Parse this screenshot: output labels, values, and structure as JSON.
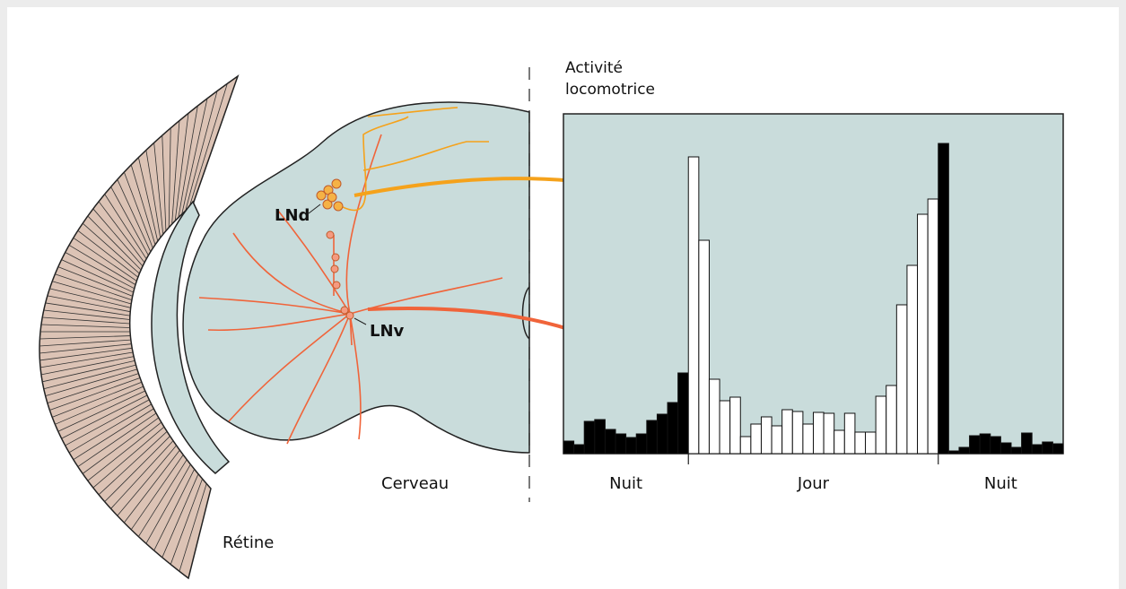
{
  "labels": {
    "lnd": "LNd",
    "lnv": "LNv",
    "brain": "Cerveau",
    "retina": "Rétine"
  },
  "chart_data": {
    "type": "bar",
    "title": "Activité locomotrice",
    "ylim": [
      0,
      379
    ],
    "periods": [
      {
        "label": "Nuit",
        "color": "#000000",
        "values": [
          14,
          10,
          36,
          38,
          27,
          22,
          18,
          22,
          37,
          44,
          57,
          90
        ]
      },
      {
        "label": "Jour",
        "color": "#ffffff",
        "values": [
          331,
          238,
          83,
          59,
          63,
          19,
          33,
          41,
          31,
          49,
          47,
          33,
          46,
          45,
          26,
          45,
          24,
          24,
          64,
          76,
          166,
          210,
          267,
          284
        ]
      },
      {
        "label": "Nuit",
        "color": "#000000",
        "values": [
          346,
          3,
          7,
          20,
          22,
          19,
          12,
          7,
          23,
          10,
          13,
          11
        ]
      }
    ]
  }
}
